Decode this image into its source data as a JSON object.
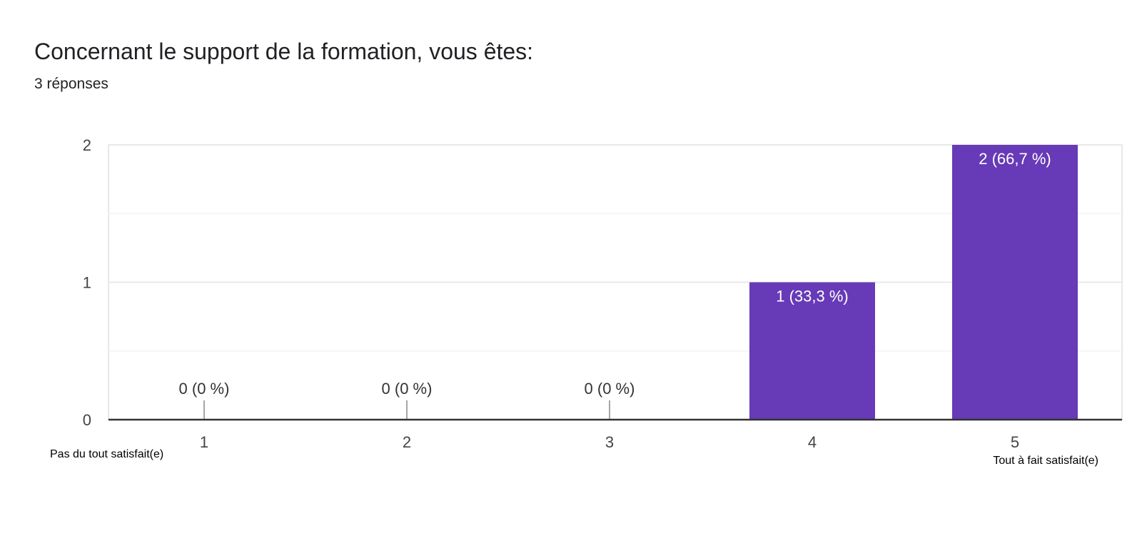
{
  "header": {
    "title": "Concernant le support de la formation, vous êtes:",
    "subtitle": "3 réponses"
  },
  "colors": {
    "bar": "#673AB7",
    "grid": "#E8E8E8",
    "grid_minor": "#F3F3F3",
    "axis": "#333333",
    "label_dark": "#333333",
    "label_light": "#FFFFFF"
  },
  "chart_data": {
    "type": "bar",
    "title": "Concernant le support de la formation, vous êtes:",
    "subtitle": "3 réponses",
    "categories": [
      "1",
      "2",
      "3",
      "4",
      "5"
    ],
    "values": [
      0,
      0,
      0,
      1,
      2
    ],
    "data_labels": [
      "0 (0 %)",
      "0 (0 %)",
      "0 (0 %)",
      "1 (33,3 %)",
      "2 (66,7 %)"
    ],
    "yticks": [
      "0",
      "1",
      "2"
    ],
    "ylim": [
      0,
      2
    ],
    "grid": true,
    "scale_labels": {
      "low": "Pas du tout satisfait(e)",
      "high": "Tout à fait satisfait(e)"
    }
  }
}
